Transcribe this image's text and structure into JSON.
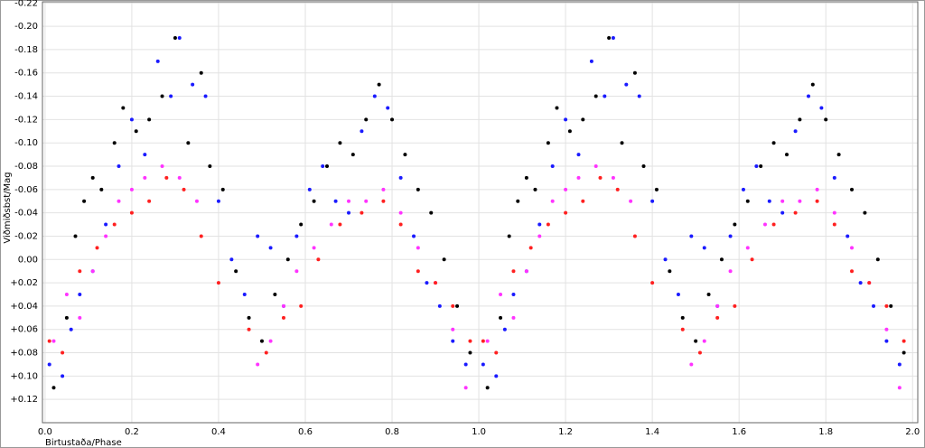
{
  "chart_data": {
    "type": "scatter",
    "xlabel": "Birtustaða/Phase",
    "ylabel": "Viðmiðsbst/Mag",
    "xlim": [
      -0.006,
      2.012
    ],
    "ylim": [
      -0.221,
      0.14
    ],
    "y_inverted": true,
    "grid": true,
    "xticks": [
      {
        "value": 0,
        "label": "0.0"
      },
      {
        "value": 0.2,
        "label": "0.2"
      },
      {
        "value": 0.4,
        "label": "0.4"
      },
      {
        "value": 0.6,
        "label": "0.6"
      },
      {
        "value": 0.8,
        "label": "0.8"
      },
      {
        "value": 1,
        "label": "1.0"
      },
      {
        "value": 1.2,
        "label": "1.2"
      },
      {
        "value": 1.4,
        "label": "1.4"
      },
      {
        "value": 1.6,
        "label": "1.6"
      },
      {
        "value": 1.8,
        "label": "1.8"
      },
      {
        "value": 2,
        "label": "2.0"
      }
    ],
    "yticks": [
      {
        "value": -0.22,
        "label": "-0.22"
      },
      {
        "value": -0.2,
        "label": "-0.20"
      },
      {
        "value": -0.18,
        "label": "-0.18"
      },
      {
        "value": -0.16,
        "label": "-0.16"
      },
      {
        "value": -0.14,
        "label": "-0.14"
      },
      {
        "value": -0.12,
        "label": "-0.12"
      },
      {
        "value": -0.1,
        "label": "-0.10"
      },
      {
        "value": -0.08,
        "label": "-0.08"
      },
      {
        "value": -0.06,
        "label": "-0.06"
      },
      {
        "value": -0.04,
        "label": "-0.04"
      },
      {
        "value": -0.02,
        "label": "-0.02"
      },
      {
        "value": 0,
        "label": "0.00"
      },
      {
        "value": 0.02,
        "label": "+0.02"
      },
      {
        "value": 0.04,
        "label": "+0.04"
      },
      {
        "value": 0.06,
        "label": "+0.06"
      },
      {
        "value": 0.08,
        "label": "+0.08"
      },
      {
        "value": 0.1,
        "label": "+0.10"
      },
      {
        "value": 0.12,
        "label": "+0.12"
      }
    ],
    "series": [
      {
        "color": "#000000",
        "x": [
          0.02,
          0.05,
          0.07,
          0.09,
          0.11,
          0.13,
          0.16,
          0.18,
          0.21,
          0.24,
          0.27,
          0.3,
          0.33,
          0.36,
          0.38,
          0.41,
          0.44,
          0.47,
          0.5,
          0.53,
          0.56,
          0.59,
          0.62,
          0.65,
          0.68,
          0.71,
          0.74,
          0.77,
          0.8,
          0.83,
          0.86,
          0.89,
          0.92,
          0.95,
          0.98,
          1.02,
          1.05,
          1.07,
          1.09,
          1.11,
          1.13,
          1.16,
          1.18,
          1.21,
          1.24,
          1.27,
          1.3,
          1.33,
          1.36,
          1.38,
          1.41,
          1.44,
          1.47,
          1.5,
          1.53,
          1.56,
          1.59,
          1.62,
          1.65,
          1.68,
          1.71,
          1.74,
          1.77,
          1.8,
          1.83,
          1.86,
          1.89,
          1.92,
          1.95,
          1.98
        ],
        "values": [
          0.11,
          0.05,
          -0.02,
          -0.05,
          -0.07,
          -0.06,
          -0.1,
          -0.13,
          -0.11,
          -0.12,
          -0.14,
          -0.19,
          -0.1,
          -0.16,
          -0.08,
          -0.06,
          0.01,
          0.05,
          0.07,
          0.03,
          0.0,
          -0.03,
          -0.05,
          -0.08,
          -0.1,
          -0.09,
          -0.12,
          -0.15,
          -0.12,
          -0.09,
          -0.06,
          -0.04,
          0.0,
          0.04,
          0.08,
          0.11,
          0.05,
          -0.02,
          -0.05,
          -0.07,
          -0.06,
          -0.1,
          -0.13,
          -0.11,
          -0.12,
          -0.14,
          -0.19,
          -0.1,
          -0.16,
          -0.08,
          -0.06,
          0.01,
          0.05,
          0.07,
          0.03,
          0.0,
          -0.03,
          -0.05,
          -0.08,
          -0.1,
          -0.09,
          -0.12,
          -0.15,
          -0.12,
          -0.09,
          -0.06,
          -0.04,
          0.0,
          0.04,
          0.08
        ]
      },
      {
        "color": "#1a1aff",
        "x": [
          0.01,
          0.04,
          0.06,
          0.08,
          0.11,
          0.14,
          0.17,
          0.2,
          0.23,
          0.26,
          0.29,
          0.31,
          0.34,
          0.37,
          0.4,
          0.43,
          0.46,
          0.49,
          0.52,
          0.55,
          0.58,
          0.61,
          0.64,
          0.67,
          0.7,
          0.73,
          0.76,
          0.79,
          0.82,
          0.85,
          0.88,
          0.91,
          0.94,
          0.97,
          1.01,
          1.04,
          1.06,
          1.08,
          1.11,
          1.14,
          1.17,
          1.2,
          1.23,
          1.26,
          1.29,
          1.31,
          1.34,
          1.37,
          1.4,
          1.43,
          1.46,
          1.49,
          1.52,
          1.55,
          1.58,
          1.61,
          1.64,
          1.67,
          1.7,
          1.73,
          1.76,
          1.79,
          1.82,
          1.85,
          1.88,
          1.91,
          1.94,
          1.97
        ],
        "values": [
          0.09,
          0.1,
          0.06,
          0.03,
          0.01,
          -0.03,
          -0.08,
          -0.12,
          -0.09,
          -0.17,
          -0.14,
          -0.19,
          -0.15,
          -0.14,
          -0.05,
          0.0,
          0.03,
          -0.02,
          -0.01,
          0.04,
          -0.02,
          -0.06,
          -0.08,
          -0.05,
          -0.04,
          -0.11,
          -0.14,
          -0.13,
          -0.07,
          -0.02,
          0.02,
          0.04,
          0.07,
          0.09,
          0.09,
          0.1,
          0.06,
          0.03,
          0.01,
          -0.03,
          -0.08,
          -0.12,
          -0.09,
          -0.17,
          -0.14,
          -0.19,
          -0.15,
          -0.14,
          -0.05,
          0.0,
          0.03,
          -0.02,
          -0.01,
          0.04,
          -0.02,
          -0.06,
          -0.08,
          -0.05,
          -0.04,
          -0.11,
          -0.14,
          -0.13,
          -0.07,
          -0.02,
          0.02,
          0.04,
          0.07,
          0.09
        ]
      },
      {
        "color": "#ff33ff",
        "x": [
          0.02,
          0.05,
          0.08,
          0.11,
          0.14,
          0.17,
          0.2,
          0.23,
          0.27,
          0.31,
          0.35,
          0.49,
          0.52,
          0.55,
          0.58,
          0.62,
          0.66,
          0.7,
          0.74,
          0.78,
          0.82,
          0.86,
          0.9,
          0.94,
          0.97,
          1.02,
          1.05,
          1.08,
          1.11,
          1.14,
          1.17,
          1.2,
          1.23,
          1.27,
          1.31,
          1.35,
          1.49,
          1.52,
          1.55,
          1.58,
          1.62,
          1.66,
          1.7,
          1.74,
          1.78,
          1.82,
          1.86,
          1.9,
          1.94,
          1.97
        ],
        "values": [
          0.07,
          0.03,
          0.05,
          0.01,
          -0.02,
          -0.05,
          -0.06,
          -0.07,
          -0.08,
          -0.07,
          -0.05,
          0.09,
          0.07,
          0.04,
          0.01,
          -0.01,
          -0.03,
          -0.05,
          -0.05,
          -0.06,
          -0.04,
          -0.01,
          0.02,
          0.06,
          0.11,
          0.07,
          0.03,
          0.05,
          0.01,
          -0.02,
          -0.05,
          -0.06,
          -0.07,
          -0.08,
          -0.07,
          -0.05,
          0.09,
          0.07,
          0.04,
          0.01,
          -0.01,
          -0.03,
          -0.05,
          -0.05,
          -0.06,
          -0.04,
          -0.01,
          0.02,
          0.06,
          0.11
        ]
      },
      {
        "color": "#ff2020",
        "x": [
          0.01,
          0.04,
          0.08,
          0.12,
          0.16,
          0.2,
          0.24,
          0.28,
          0.32,
          0.36,
          0.4,
          0.47,
          0.51,
          0.55,
          0.59,
          0.63,
          0.68,
          0.73,
          0.78,
          0.82,
          0.86,
          0.9,
          0.94,
          0.98,
          1.01,
          1.04,
          1.08,
          1.12,
          1.16,
          1.2,
          1.24,
          1.28,
          1.32,
          1.36,
          1.4,
          1.47,
          1.51,
          1.55,
          1.59,
          1.63,
          1.68,
          1.73,
          1.78,
          1.82,
          1.86,
          1.9,
          1.94,
          1.98
        ],
        "values": [
          0.07,
          0.08,
          0.01,
          -0.01,
          -0.03,
          -0.04,
          -0.05,
          -0.07,
          -0.06,
          -0.02,
          0.02,
          0.06,
          0.08,
          0.05,
          0.04,
          0.0,
          -0.03,
          -0.04,
          -0.05,
          -0.03,
          0.01,
          0.02,
          0.04,
          0.07,
          0.07,
          0.08,
          0.01,
          -0.01,
          -0.03,
          -0.04,
          -0.05,
          -0.07,
          -0.06,
          -0.02,
          0.02,
          0.06,
          0.08,
          0.05,
          0.04,
          0.0,
          -0.03,
          -0.04,
          -0.05,
          -0.03,
          0.01,
          0.02,
          0.04,
          0.07
        ]
      }
    ]
  }
}
